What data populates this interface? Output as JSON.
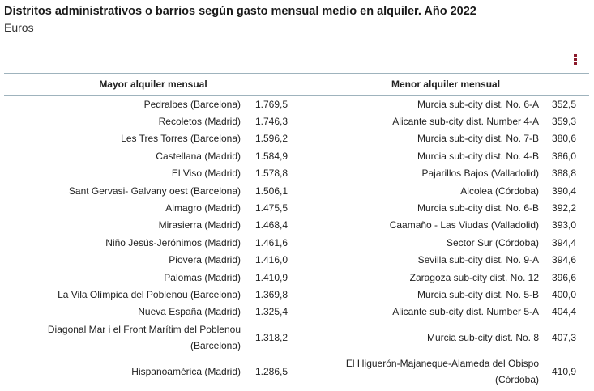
{
  "title": "Distritos administrativos o barrios según gasto mensual medio en alquiler. Año 2022",
  "subtitle": "Euros",
  "menu_icon": "vertical-dots-icon",
  "accent_color": "#8b1a2b",
  "headers": {
    "left": "Mayor alquiler mensual",
    "right": "Menor alquiler mensual"
  },
  "rows": [
    {
      "high_name": "Pedralbes (Barcelona)",
      "high_value": "1.769,5",
      "low_name": "Murcia sub-city dist. No. 6-A",
      "low_value": "352,5"
    },
    {
      "high_name": "Recoletos (Madrid)",
      "high_value": "1.746,3",
      "low_name": "Alicante sub-city dist. Number 4-A",
      "low_value": "359,3"
    },
    {
      "high_name": "Les Tres Torres (Barcelona)",
      "high_value": "1.596,2",
      "low_name": "Murcia sub-city dist. No. 7-B",
      "low_value": "380,6"
    },
    {
      "high_name": "Castellana (Madrid)",
      "high_value": "1.584,9",
      "low_name": "Murcia sub-city dist. No. 4-B",
      "low_value": "386,0"
    },
    {
      "high_name": "El Viso (Madrid)",
      "high_value": "1.578,8",
      "low_name": "Pajarillos Bajos (Valladolid)",
      "low_value": "388,8"
    },
    {
      "high_name": "Sant Gervasi- Galvany oest (Barcelona)",
      "high_value": "1.506,1",
      "low_name": "Alcolea (Córdoba)",
      "low_value": "390,4"
    },
    {
      "high_name": "Almagro (Madrid)",
      "high_value": "1.475,5",
      "low_name": "Murcia sub-city dist. No. 6-B",
      "low_value": "392,2"
    },
    {
      "high_name": "Mirasierra (Madrid)",
      "high_value": "1.468,4",
      "low_name": "Caamaño - Las Viudas (Valladolid)",
      "low_value": "393,0"
    },
    {
      "high_name": "Niño Jesús-Jerónimos (Madrid)",
      "high_value": "1.461,6",
      "low_name": "Sector Sur (Córdoba)",
      "low_value": "394,4"
    },
    {
      "high_name": "Piovera (Madrid)",
      "high_value": "1.416,0",
      "low_name": "Sevilla sub-city dist. No. 9-A",
      "low_value": "394,6"
    },
    {
      "high_name": "Palomas (Madrid)",
      "high_value": "1.410,9",
      "low_name": "Zaragoza sub-city dist. No. 12",
      "low_value": "396,6"
    },
    {
      "high_name": "La Vila Olímpica del Poblenou (Barcelona)",
      "high_value": "1.369,8",
      "low_name": "Murcia sub-city dist. No. 5-B",
      "low_value": "400,0"
    },
    {
      "high_name": "Nueva España (Madrid)",
      "high_value": "1.325,4",
      "low_name": "Alicante sub-city dist. Number 5-A",
      "low_value": "404,4"
    },
    {
      "high_name": "Diagonal Mar i el Front Marítim del Poblenou (Barcelona)",
      "high_value": "1.318,2",
      "low_name": "Murcia sub-city dist. No. 8",
      "low_value": "407,3"
    },
    {
      "high_name": "Hispanoamérica (Madrid)",
      "high_value": "1.286,5",
      "low_name": "El Higuerón-Majaneque-Alameda del Obispo (Córdoba)",
      "low_value": "410,9"
    }
  ]
}
